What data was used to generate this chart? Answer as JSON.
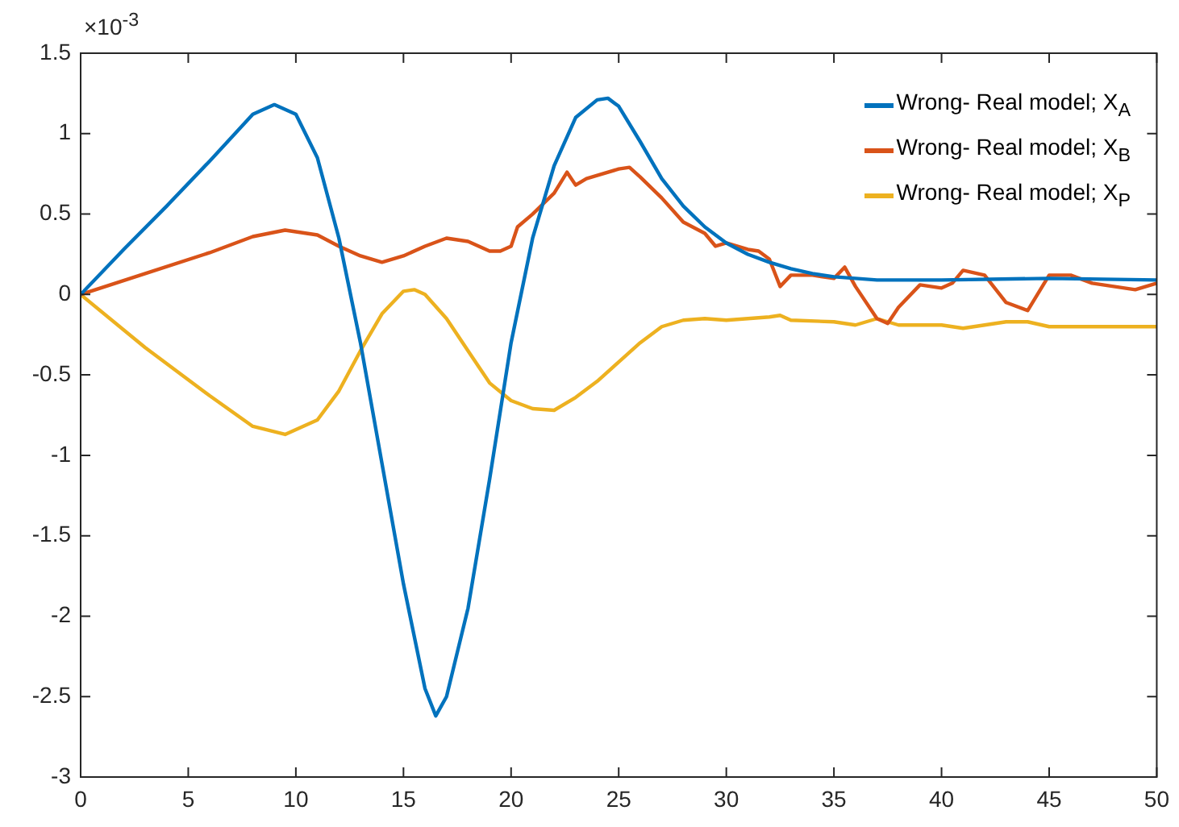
{
  "chart_data": {
    "type": "line",
    "annotations": [
      "×10$^{-3}$"
    ],
    "xlim": [
      0,
      50
    ],
    "ylim": [
      -3,
      1.5
    ],
    "xticks": [
      0,
      5,
      10,
      15,
      20,
      25,
      30,
      35,
      40,
      45,
      50
    ],
    "yticks": [
      -3,
      -2.5,
      -2,
      -1.5,
      -1,
      -0.5,
      0,
      0.5,
      1,
      1.5
    ],
    "grid": false,
    "legend": "top right",
    "marker": "none",
    "line_style": "solid",
    "series": [
      {
        "name": "Wrong- Real model; X$_{A}$",
        "color": "#0072bd",
        "x": [
          0,
          2,
          4,
          6,
          8,
          9,
          10,
          11,
          12,
          13,
          14,
          15,
          16,
          16.5,
          17,
          18,
          19,
          20,
          21,
          22,
          23,
          24,
          24.5,
          25,
          26,
          27,
          28,
          29,
          30,
          31,
          32,
          33,
          34,
          35,
          37,
          40,
          45,
          50
        ],
        "values": [
          0,
          0.28,
          0.55,
          0.83,
          1.12,
          1.18,
          1.12,
          0.85,
          0.35,
          -0.3,
          -1.05,
          -1.8,
          -2.45,
          -2.62,
          -2.5,
          -1.95,
          -1.15,
          -0.3,
          0.35,
          0.8,
          1.1,
          1.21,
          1.22,
          1.17,
          0.95,
          0.72,
          0.55,
          0.42,
          0.32,
          0.25,
          0.2,
          0.16,
          0.13,
          0.11,
          0.09,
          0.09,
          0.1,
          0.09
        ]
      },
      {
        "name": "Wrong- Real model; X$_{B}$",
        "color": "#d95319",
        "x": [
          0,
          3,
          6,
          8,
          9.5,
          11,
          12,
          13,
          14,
          15,
          16,
          17,
          18,
          19,
          19.5,
          20,
          20.3,
          21,
          22,
          22.6,
          23,
          23.5,
          24,
          25,
          25.5,
          26,
          27,
          28,
          29,
          29.5,
          30,
          30.5,
          31,
          31.5,
          32,
          32.5,
          33,
          34,
          35,
          35.5,
          36,
          37,
          37.5,
          38,
          39,
          40,
          40.5,
          41,
          42,
          43,
          44,
          45,
          46,
          47,
          48,
          49,
          50
        ],
        "values": [
          0,
          0.13,
          0.26,
          0.36,
          0.4,
          0.37,
          0.3,
          0.24,
          0.2,
          0.24,
          0.3,
          0.35,
          0.33,
          0.27,
          0.27,
          0.3,
          0.42,
          0.5,
          0.63,
          0.76,
          0.68,
          0.72,
          0.74,
          0.78,
          0.79,
          0.73,
          0.6,
          0.45,
          0.38,
          0.3,
          0.32,
          0.3,
          0.28,
          0.27,
          0.22,
          0.05,
          0.12,
          0.12,
          0.1,
          0.17,
          0.05,
          -0.15,
          -0.18,
          -0.08,
          0.06,
          0.04,
          0.07,
          0.15,
          0.12,
          -0.05,
          -0.1,
          0.12,
          0.12,
          0.07,
          0.05,
          0.03,
          0.07
        ]
      },
      {
        "name": "Wrong- Real model; X$_{P}$",
        "color": "#edb120",
        "x": [
          0,
          3,
          6,
          8,
          9.5,
          11,
          12,
          13,
          14,
          15,
          15.5,
          16,
          17,
          18,
          19,
          20,
          21,
          22,
          23,
          24,
          25,
          26,
          27,
          28,
          29,
          30,
          31,
          32,
          32.5,
          33,
          35,
          36,
          37,
          38,
          40,
          41,
          42,
          43,
          44,
          45,
          47,
          50
        ],
        "values": [
          0,
          -0.33,
          -0.63,
          -0.82,
          -0.87,
          -0.78,
          -0.6,
          -0.35,
          -0.12,
          0.02,
          0.03,
          0,
          -0.15,
          -0.35,
          -0.55,
          -0.66,
          -0.71,
          -0.72,
          -0.64,
          -0.54,
          -0.42,
          -0.3,
          -0.2,
          -0.16,
          -0.15,
          -0.16,
          -0.15,
          -0.14,
          -0.13,
          -0.16,
          -0.17,
          -0.19,
          -0.15,
          -0.19,
          -0.19,
          -0.21,
          -0.19,
          -0.17,
          -0.17,
          -0.2,
          -0.2,
          -0.2
        ]
      }
    ]
  }
}
